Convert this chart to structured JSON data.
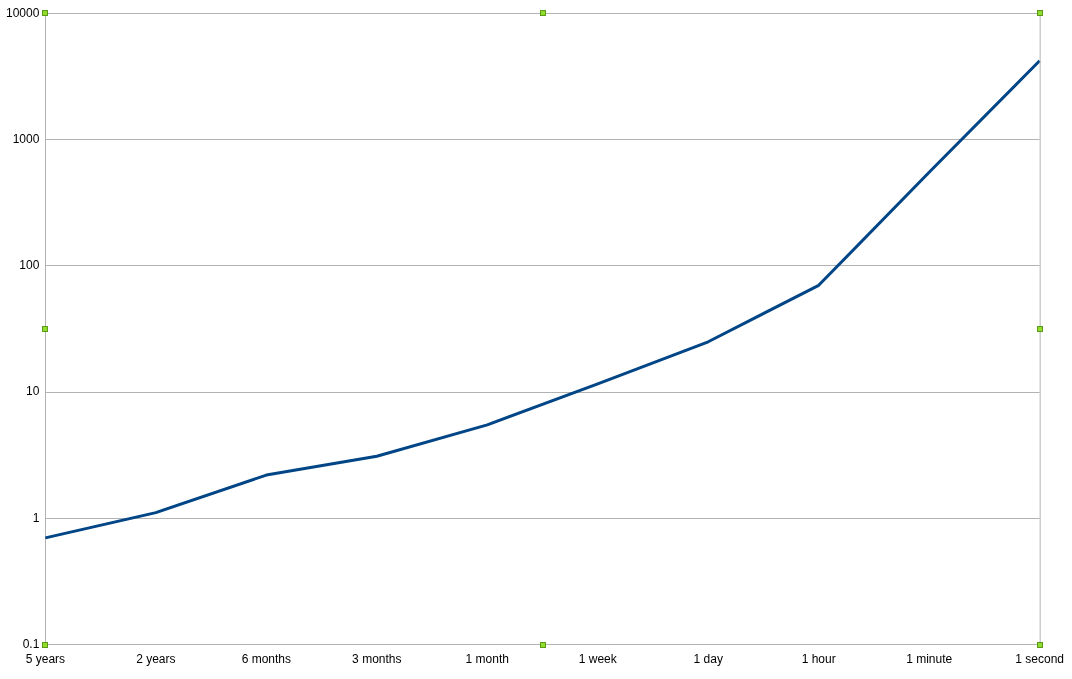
{
  "chart_data": {
    "type": "line",
    "categories": [
      "5 years",
      "2 years",
      "6 months",
      "3 months",
      "1 month",
      "1 week",
      "1 day",
      "1 hour",
      "1 minute",
      "1 second"
    ],
    "series": [
      {
        "color": "#004586",
        "values": [
          0.7,
          1.11,
          2.2,
          3.1,
          5.5,
          11.6,
          25,
          70,
          550,
          4200
        ]
      }
    ],
    "log": "y",
    "ylim": [
      0.1,
      10000
    ],
    "yticks": [
      0.1,
      1,
      10,
      100,
      1000,
      10000
    ],
    "grid": "y",
    "legend": false,
    "marker": "none",
    "line_style": "solid"
  }
}
